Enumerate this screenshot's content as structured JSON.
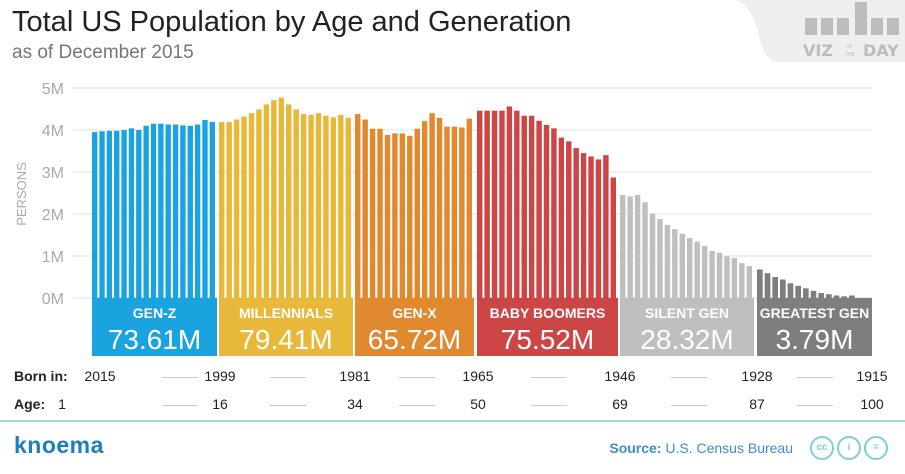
{
  "header": {
    "title": "Total US Population by Age and Generation",
    "subtitle": "as of December 2015"
  },
  "logo": {
    "text": "VIZ OF THE DAY"
  },
  "chart_data": {
    "type": "bar",
    "ylabel": "PERSONS",
    "ylim": [
      0,
      5
    ],
    "yticks": [
      "0M",
      "1M",
      "2M",
      "3M",
      "4M",
      "5M"
    ],
    "grid": true,
    "x_order": "age 0 (left) to 100 (right)",
    "units": "millions of persons",
    "series": [
      {
        "name": "GEN-Z",
        "total": "73.61M",
        "color": "#1ba3e0",
        "values": [
          3.95,
          3.97,
          3.98,
          3.98,
          4.0,
          4.04,
          4.0,
          4.1,
          4.15,
          4.15,
          4.13,
          4.13,
          4.11,
          4.1,
          4.13,
          4.24,
          4.19
        ]
      },
      {
        "name": "MILLENNIALS",
        "total": "79.41M",
        "color": "#e8b83a",
        "values": [
          4.19,
          4.19,
          4.25,
          4.32,
          4.4,
          4.49,
          4.61,
          4.71,
          4.77,
          4.61,
          4.49,
          4.38,
          4.36,
          4.4,
          4.34,
          4.3,
          4.36,
          4.29
        ]
      },
      {
        "name": "GEN-X",
        "total": "65.72M",
        "color": "#e0892f",
        "values": [
          4.38,
          4.25,
          4.03,
          4.03,
          3.88,
          3.92,
          3.92,
          3.86,
          4.03,
          4.21,
          4.4,
          4.29,
          4.08,
          4.08,
          4.06,
          4.27
        ]
      },
      {
        "name": "BABY BOOMERS",
        "total": "75.52M",
        "color": "#cd4646",
        "values": [
          4.46,
          4.46,
          4.46,
          4.46,
          4.56,
          4.46,
          4.34,
          4.34,
          4.22,
          4.12,
          4.04,
          3.82,
          3.73,
          3.57,
          3.45,
          3.37,
          3.3,
          3.4,
          2.87
        ]
      },
      {
        "name": "SILENT GEN",
        "total": "28.32M",
        "color": "#bfbfbf",
        "values": [
          2.45,
          2.42,
          2.45,
          2.28,
          2.01,
          1.88,
          1.74,
          1.64,
          1.53,
          1.43,
          1.34,
          1.24,
          1.12,
          1.08,
          0.99,
          0.95,
          0.83,
          0.76
        ]
      },
      {
        "name": "GREATEST GEN",
        "total": "3.79M",
        "color": "#7e7e7e",
        "values": [
          0.68,
          0.59,
          0.5,
          0.44,
          0.35,
          0.29,
          0.23,
          0.17,
          0.12,
          0.09,
          0.06,
          0.04,
          0.06
        ]
      }
    ]
  },
  "rows": {
    "born": {
      "label": "Born in:",
      "values": [
        "2015",
        "1999",
        "1981",
        "1965",
        "1946",
        "1928",
        "1915"
      ]
    },
    "age": {
      "label": "Age:",
      "values": [
        "1",
        "16",
        "34",
        "50",
        "69",
        "87",
        "100"
      ]
    }
  },
  "footer": {
    "brand": "knoema",
    "source_label": "Source:",
    "source": "U.S. Census Bureau",
    "license_icons": [
      "cc-icon",
      "attribution-icon",
      "no-derivatives-icon"
    ]
  }
}
